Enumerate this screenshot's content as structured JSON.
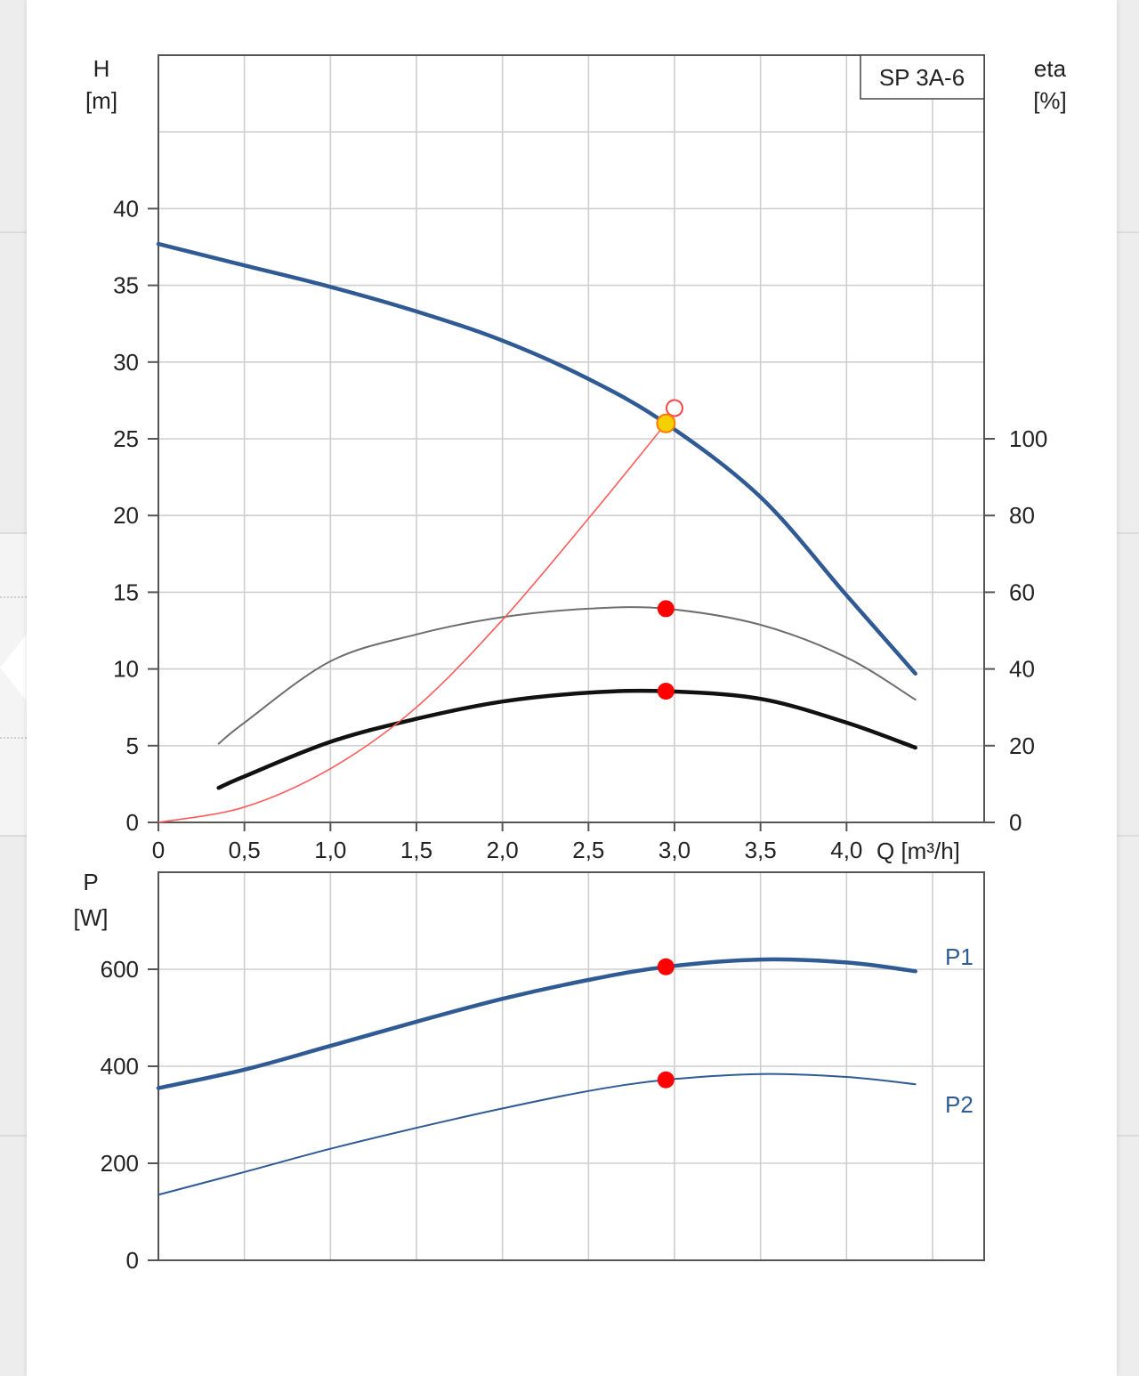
{
  "chart_data": [
    {
      "type": "line",
      "title": "",
      "legend_box": "SP 3A-6",
      "xlabel": "Q [m³/h]",
      "ylabel_left": [
        "H",
        "[m]"
      ],
      "ylabel_right": [
        "eta",
        "[%]"
      ],
      "xlim": [
        0,
        4.8
      ],
      "ylim_left": [
        0,
        50
      ],
      "ylim_right": [
        0,
        200
      ],
      "x_ticks": [
        "0",
        "0,5",
        "1,0",
        "1,5",
        "2,0",
        "2,5",
        "3,0",
        "3,5",
        "4,0"
      ],
      "x_tick_values": [
        0,
        0.5,
        1.0,
        1.5,
        2.0,
        2.5,
        3.0,
        3.5,
        4.0
      ],
      "y_ticks_left": [
        "0",
        "5",
        "10",
        "15",
        "20",
        "25",
        "30",
        "35",
        "40"
      ],
      "y_tick_values_left": [
        0,
        5,
        10,
        15,
        20,
        25,
        30,
        35,
        40
      ],
      "y_ticks_right": [
        "0",
        "20",
        "40",
        "60",
        "80",
        "100"
      ],
      "y_tick_values_right": [
        0,
        20,
        40,
        60,
        80,
        100
      ],
      "grid": true,
      "series": [
        {
          "key": "head",
          "axis": "left",
          "color": "#2f5a93",
          "x": [
            0,
            0.5,
            1.0,
            1.5,
            2.0,
            2.5,
            2.95,
            3.5,
            4.0,
            4.4
          ],
          "y": [
            37.7,
            36.3,
            34.9,
            33.3,
            31.4,
            28.9,
            26.0,
            21.2,
            14.8,
            9.7
          ]
        },
        {
          "key": "eta_thin",
          "axis": "right",
          "color": "#6e6e6e",
          "x": [
            0.35,
            0.5,
            1.0,
            1.5,
            2.0,
            2.5,
            2.95,
            3.5,
            4.0,
            4.4
          ],
          "y": [
            20.5,
            26,
            42,
            49,
            53.5,
            55.7,
            55.7,
            51.5,
            43,
            32
          ]
        },
        {
          "key": "eta_thick",
          "axis": "right",
          "color": "#111111",
          "x": [
            0.35,
            0.5,
            1.0,
            1.5,
            2.0,
            2.5,
            2.95,
            3.5,
            4.0,
            4.4
          ],
          "y": [
            9,
            12,
            21,
            27,
            31.5,
            33.8,
            34.2,
            32.2,
            26,
            19.5
          ]
        },
        {
          "key": "system_curve",
          "axis": "left",
          "color": "#ff5a5a",
          "x": [
            0,
            0.5,
            1.0,
            1.5,
            2.0,
            2.5,
            2.95
          ],
          "y": [
            0,
            1.0,
            3.5,
            7.5,
            13.2,
            19.8,
            26.0
          ]
        }
      ],
      "points": [
        {
          "key": "duty_point",
          "axis": "left",
          "x": 2.95,
          "y": 26.0,
          "color": "#f5d000"
        },
        {
          "key": "requested_point",
          "axis": "left",
          "x": 3.0,
          "y": 27.0,
          "color": "#ffffff"
        },
        {
          "key": "eta_thin_point",
          "axis": "right",
          "x": 2.95,
          "y": 55.7,
          "color": "#ff0000"
        },
        {
          "key": "eta_thick_point",
          "axis": "right",
          "x": 2.95,
          "y": 34.2,
          "color": "#ff0000"
        }
      ]
    },
    {
      "type": "line",
      "title": "",
      "ylabel": [
        "P",
        "[W]"
      ],
      "xlim": [
        0,
        4.8
      ],
      "ylim": [
        0,
        800
      ],
      "y_ticks": [
        "0",
        "200",
        "400",
        "600"
      ],
      "y_tick_values": [
        0,
        200,
        400,
        600
      ],
      "grid": true,
      "series": [
        {
          "name": "P1",
          "color": "#2f5a93",
          "x": [
            0,
            0.5,
            1.0,
            1.5,
            2.0,
            2.5,
            2.95,
            3.5,
            4.0,
            4.4
          ],
          "y": [
            355,
            393,
            442,
            492,
            539,
            578,
            605,
            620,
            614,
            596
          ]
        },
        {
          "name": "P2",
          "color": "#2f5a93",
          "x": [
            0,
            0.5,
            1.0,
            1.5,
            2.0,
            2.5,
            2.95,
            3.5,
            4.0,
            4.4
          ],
          "y": [
            135,
            182,
            230,
            273,
            313,
            349,
            372,
            384,
            378,
            363
          ]
        }
      ],
      "points": [
        {
          "key": "p1_point",
          "x": 2.95,
          "y": 605,
          "color": "#ff0000"
        },
        {
          "key": "p2_point",
          "x": 2.95,
          "y": 372,
          "color": "#ff0000"
        }
      ]
    }
  ]
}
